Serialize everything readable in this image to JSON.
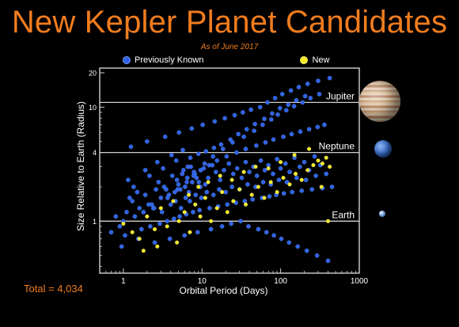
{
  "title": "New Kepler Planet Candidates",
  "subtitle": "As of June 2017",
  "total_label": "Total = 4,034",
  "colors": {
    "accent": "#f07c1e",
    "previously_known": "#2f63e6",
    "new": "#f2ea25",
    "axis": "#d0d0d0"
  },
  "legend": [
    {
      "label": "Previously Known",
      "color": "#2f63e6"
    },
    {
      "label": "New",
      "color": "#f2ea25"
    }
  ],
  "planet_images": [
    "jupiter",
    "neptune",
    "earth"
  ],
  "chart_data": {
    "type": "scatter",
    "xlabel": "Orbital Period (Days)",
    "ylabel": "Size Relative to Earth (Radius)",
    "xscale": "log",
    "yscale": "log",
    "xlim": [
      0.5,
      1000
    ],
    "ylim": [
      0.35,
      22
    ],
    "xticks": [
      1,
      10,
      100,
      1000
    ],
    "yticks": [
      1,
      4,
      10,
      20
    ],
    "reference_lines": [
      {
        "label": "Jupiter",
        "y": 11
      },
      {
        "label": "Neptune",
        "y": 4
      },
      {
        "label": "Earth",
        "y": 1
      }
    ],
    "legend_position": "top",
    "series": [
      {
        "name": "Previously Known",
        "color": "#2f63e6",
        "x": [
          1.2,
          1.5,
          2.1,
          2.8,
          3.5,
          4.2,
          5.0,
          5.8,
          6.5,
          7.2,
          8.0,
          9.1,
          10.5,
          12.0,
          13.5,
          15.0,
          17.0,
          19.0,
          22.0,
          25.0,
          28.0,
          32.0,
          36.0,
          40.0,
          45.0,
          50.0,
          56.0,
          63.0,
          70.0,
          80.0,
          90.0,
          100.0,
          115.0,
          130.0,
          150.0,
          175.0,
          200.0,
          230.0,
          270.0,
          320.0,
          1.1,
          1.3,
          1.6,
          1.9,
          2.3,
          2.6,
          3.0,
          3.3,
          3.8,
          4.5,
          4.8,
          5.3,
          5.6,
          6.1,
          6.8,
          7.5,
          7.9,
          8.5,
          9.5,
          11.0,
          0.8,
          0.9,
          1.0,
          1.4,
          1.8,
          2.4,
          3.1,
          4.0,
          4.6,
          5.4,
          6.2,
          7.0,
          8.3,
          9.8,
          11.5,
          14.0,
          16.5,
          20.0,
          24.0,
          30.0,
          38.0,
          48.0,
          60.0,
          75.0,
          95.0,
          120.0,
          160.0,
          210.0,
          280.0,
          380.0,
          0.7,
          1.05,
          1.7,
          2.2,
          2.9,
          3.6,
          4.4,
          5.2,
          6.3,
          7.7,
          9.3,
          12.5,
          16.0,
          21.0,
          27.0,
          35.0,
          44.0,
          58.0,
          72.0,
          88.0,
          110.0,
          140.0,
          185.0,
          250.0,
          340.0,
          450.0,
          1.25,
          2.0,
          3.4,
          5.1,
          7.4,
          10.2,
          14.5,
          19.5,
          26.0,
          33.0,
          42.0,
          55.0,
          68.0,
          85.0,
          105.0,
          135.0,
          170.0,
          220.0,
          300.0,
          420.0,
          0.95,
          1.55,
          2.5,
          3.9,
          6.0,
          8.8,
          13.0,
          18.0,
          23.5,
          31.0,
          39.0,
          52.0,
          66.0,
          82.0,
          102.0,
          128.0,
          165.0,
          215.0,
          290.0,
          400.0,
          1.15,
          1.9,
          2.7,
          4.1,
          5.7,
          7.1,
          9.0,
          11.2,
          14.2,
          17.5,
          23.0,
          29.0,
          37.0,
          47.0,
          62.0,
          78.0,
          98.0,
          125.0,
          158.0,
          205.0,
          1.35,
          2.15,
          3.2,
          4.7,
          6.6,
          8.1,
          10.8,
          13.8,
          18.5,
          24.5,
          34.0,
          46.0,
          59.0,
          76.0,
          92.0,
          118.0,
          148.0,
          190.0,
          240.0,
          310.0,
          2.45,
          3.65,
          4.9,
          6.4,
          7.8,
          9.6,
          12.3,
          15.5,
          20.5,
          27.5,
          36.0,
          49.0,
          64.0,
          81.0,
          108.0,
          138.0,
          178.0,
          230.0,
          295.0,
          360.0
        ],
        "y": [
          1.6,
          1.8,
          1.4,
          2.2,
          1.9,
          2.5,
          2.1,
          2.8,
          2.4,
          3.0,
          2.6,
          2.2,
          2.9,
          2.4,
          3.1,
          2.7,
          2.3,
          2.8,
          3.2,
          2.6,
          2.9,
          2.4,
          3.3,
          2.7,
          3.0,
          2.5,
          3.4,
          2.8,
          3.1,
          2.6,
          3.5,
          2.9,
          3.2,
          2.7,
          3.6,
          3.0,
          3.3,
          2.8,
          3.7,
          3.1,
          1.2,
          1.5,
          1.3,
          1.7,
          1.4,
          1.9,
          1.6,
          2.0,
          1.7,
          1.8,
          2.3,
          1.9,
          2.6,
          2.0,
          1.8,
          2.2,
          2.7,
          2.4,
          2.0,
          2.1,
          1.1,
          0.9,
          1.0,
          1.1,
          1.2,
          1.3,
          1.2,
          1.4,
          1.5,
          1.3,
          1.6,
          1.5,
          1.7,
          1.6,
          1.8,
          1.7,
          1.9,
          1.8,
          2.0,
          1.9,
          2.1,
          2.0,
          2.2,
          2.1,
          2.3,
          2.2,
          2.4,
          2.3,
          2.5,
          2.6,
          0.8,
          0.75,
          0.85,
          0.9,
          0.95,
          1.0,
          1.05,
          1.1,
          1.15,
          1.2,
          1.25,
          1.3,
          1.35,
          1.4,
          1.45,
          1.5,
          1.55,
          1.6,
          1.65,
          1.7,
          1.75,
          1.8,
          1.85,
          1.9,
          1.95,
          2.0,
          4.5,
          5.0,
          5.5,
          6.0,
          6.5,
          7.0,
          7.5,
          8.0,
          8.5,
          9.0,
          9.5,
          10.0,
          11.0,
          12.0,
          13.0,
          14.0,
          15.0,
          16.0,
          17.0,
          18.0,
          0.6,
          0.7,
          0.65,
          0.7,
          0.75,
          0.8,
          0.85,
          0.9,
          0.95,
          1.0,
          0.9,
          0.85,
          0.8,
          0.75,
          0.7,
          0.65,
          0.6,
          0.55,
          0.5,
          0.45,
          2.3,
          2.8,
          3.3,
          3.8,
          4.2,
          3.6,
          3.9,
          4.1,
          4.4,
          4.7,
          5.2,
          5.8,
          6.4,
          7.1,
          7.9,
          8.8,
          9.8,
          10.5,
          11.5,
          12.5,
          2.0,
          2.5,
          2.9,
          3.4,
          3.0,
          2.6,
          3.2,
          3.7,
          4.3,
          4.9,
          5.5,
          6.2,
          7.0,
          7.8,
          8.6,
          9.4,
          10.2,
          11.0,
          12.0,
          13.0,
          1.3,
          1.6,
          1.9,
          2.2,
          2.5,
          2.8,
          3.1,
          3.4,
          3.7,
          4.0,
          4.3,
          4.6,
          4.9,
          5.2,
          5.5,
          5.8,
          6.1,
          6.4,
          6.7,
          7.0
        ]
      },
      {
        "name": "New",
        "color": "#f2ea25",
        "x": [
          1.0,
          1.3,
          1.6,
          2.0,
          2.5,
          3.0,
          3.6,
          4.3,
          5.1,
          6.0,
          7.0,
          8.2,
          9.5,
          11.0,
          13.0,
          15.5,
          18.0,
          21.0,
          25.0,
          30.0,
          36.0,
          43.0,
          52.0,
          62.0,
          75.0,
          90.0,
          108.0,
          130.0,
          155.0,
          185.0,
          220.0,
          260.0,
          300.0,
          340.0,
          380.0,
          420.0,
          1.8,
          2.7,
          4.8,
          6.8,
          9.0,
          12.0,
          17.0,
          24.0,
          34.0,
          48.0,
          70.0,
          100.0,
          150.0,
          230.0,
          330.0,
          400.0
        ],
        "y": [
          0.95,
          0.8,
          0.7,
          1.1,
          0.85,
          1.3,
          0.9,
          1.5,
          1.0,
          1.2,
          0.8,
          1.4,
          1.1,
          1.6,
          1.0,
          1.3,
          1.8,
          1.2,
          1.5,
          1.9,
          1.4,
          1.7,
          2.0,
          1.6,
          2.2,
          1.8,
          2.4,
          2.1,
          2.6,
          2.3,
          2.8,
          3.1,
          3.4,
          3.2,
          3.6,
          3.0,
          0.55,
          0.6,
          0.65,
          1.7,
          2.0,
          2.2,
          2.5,
          2.3,
          2.7,
          3.0,
          2.9,
          3.3,
          3.8,
          4.3,
          2.0,
          1.0
        ]
      }
    ]
  }
}
